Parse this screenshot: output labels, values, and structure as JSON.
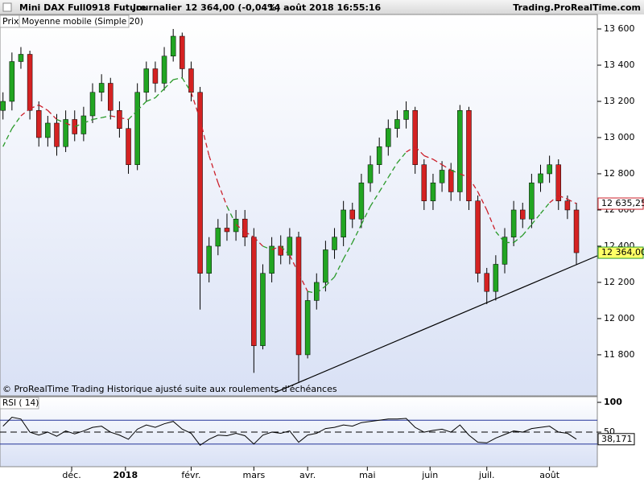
{
  "header": {
    "instrument": "Mini DAX Full0918 Future",
    "period": "Journalier",
    "quote": "12 364,00 (-0,04%)",
    "datetime": "14 août 2018 16:55:16",
    "site": "Trading.ProRealTime.com"
  },
  "chart_data": {
    "type": "candlestick",
    "price_label": "Prix",
    "footer": "© ProRealTime Trading  Historique ajusté suite aux roulements d'échéances",
    "up_color": "#22a522",
    "down_color": "#d42222",
    "xlim": [
      0,
      200
    ],
    "xticks": [
      {
        "value": 24,
        "label": "déc."
      },
      {
        "value": 42,
        "label": "2018"
      },
      {
        "value": 64,
        "label": "févr."
      },
      {
        "value": 85,
        "label": "mars"
      },
      {
        "value": 103,
        "label": "avr."
      },
      {
        "value": 123,
        "label": "mai"
      },
      {
        "value": 144,
        "label": "juin"
      },
      {
        "value": 163,
        "label": "juil."
      },
      {
        "value": 184,
        "label": "août"
      }
    ],
    "ylim": [
      11573,
      13680
    ],
    "yticks": [
      {
        "value": 13600,
        "label": "13 600"
      },
      {
        "value": 13400,
        "label": "13 400"
      },
      {
        "value": 13200,
        "label": "13 200"
      },
      {
        "value": 13000,
        "label": "13 000"
      },
      {
        "value": 12800,
        "label": "12 800"
      },
      {
        "value": 12600,
        "label": "12 600"
      },
      {
        "value": 12400,
        "label": "12 400"
      },
      {
        "value": 12200,
        "label": "12 200"
      },
      {
        "value": 12000,
        "label": "12 000"
      },
      {
        "value": 11800,
        "label": "11 800"
      }
    ],
    "x": [
      1,
      4,
      7,
      10,
      13,
      16,
      19,
      22,
      25,
      28,
      31,
      34,
      37,
      40,
      43,
      46,
      49,
      52,
      55,
      58,
      61,
      64,
      67,
      70,
      73,
      76,
      79,
      82,
      85,
      88,
      91,
      94,
      97,
      100,
      103,
      106,
      109,
      112,
      115,
      118,
      121,
      124,
      127,
      130,
      133,
      136,
      139,
      142,
      145,
      148,
      151,
      154,
      157,
      160,
      163,
      166,
      169,
      172,
      175,
      178,
      181,
      184,
      187,
      190,
      193
    ],
    "open": [
      13150,
      13200,
      13420,
      13460,
      13150,
      13000,
      13080,
      12950,
      13100,
      13020,
      13120,
      13250,
      13300,
      13150,
      13050,
      12850,
      13250,
      13380,
      13300,
      13450,
      13560,
      13380,
      13250,
      12250,
      12400,
      12500,
      12480,
      12550,
      12450,
      11850,
      12250,
      12400,
      12350,
      12450,
      11800,
      12100,
      12200,
      12380,
      12450,
      12600,
      12550,
      12750,
      12850,
      12950,
      13050,
      13100,
      13150,
      12850,
      12650,
      12750,
      12820,
      12700,
      13150,
      12650,
      12250,
      12150,
      12300,
      12450,
      12600,
      12550,
      12750,
      12800,
      12850,
      12650,
      12600
    ],
    "high": [
      13250,
      13470,
      13500,
      13480,
      13200,
      13120,
      13130,
      13150,
      13150,
      13170,
      13300,
      13350,
      13330,
      13200,
      13100,
      13300,
      13420,
      13420,
      13500,
      13600,
      13580,
      13420,
      13280,
      12450,
      12550,
      12580,
      12600,
      12600,
      12500,
      12300,
      12450,
      12460,
      12500,
      12480,
      12150,
      12250,
      12430,
      12500,
      12650,
      12640,
      12800,
      12900,
      13000,
      13100,
      13150,
      13200,
      13170,
      12880,
      12800,
      12870,
      12860,
      13180,
      13170,
      12680,
      12280,
      12350,
      12500,
      12650,
      12640,
      12800,
      12850,
      12900,
      12880,
      12680,
      12640
    ],
    "low": [
      13100,
      13150,
      13380,
      13100,
      12950,
      12950,
      12900,
      12920,
      12980,
      12980,
      13080,
      13200,
      13100,
      13000,
      12800,
      12820,
      13200,
      13250,
      13260,
      13420,
      13330,
      13200,
      12050,
      12200,
      12350,
      12430,
      12430,
      12400,
      11700,
      11830,
      12200,
      12300,
      12300,
      11650,
      11780,
      12050,
      12150,
      12330,
      12400,
      12500,
      12500,
      12700,
      12800,
      12900,
      13000,
      13050,
      12800,
      12600,
      12600,
      12700,
      12650,
      12650,
      12600,
      12200,
      12080,
      12100,
      12250,
      12400,
      12500,
      12500,
      12700,
      12750,
      12600,
      12550,
      12300
    ],
    "close": [
      13200,
      13420,
      13460,
      13150,
      13000,
      13080,
      12950,
      13100,
      13020,
      13120,
      13250,
      13300,
      13150,
      13050,
      12850,
      13250,
      13380,
      13300,
      13450,
      13560,
      13380,
      13250,
      12250,
      12400,
      12500,
      12480,
      12550,
      12450,
      11850,
      12250,
      12400,
      12350,
      12450,
      11800,
      12100,
      12200,
      12380,
      12450,
      12600,
      12550,
      12750,
      12850,
      12950,
      13050,
      13100,
      13150,
      12850,
      12650,
      12750,
      12820,
      12700,
      13150,
      12650,
      12250,
      12150,
      12300,
      12450,
      12600,
      12550,
      12750,
      12800,
      12850,
      12650,
      12600,
      12364
    ],
    "ma": {
      "name": "Moyenne mobile (Simple 20)",
      "up_color": "#2a9a2a",
      "down_color": "#cc1f2a",
      "values": [
        12950,
        13050,
        13120,
        13160,
        13180,
        13150,
        13100,
        13080,
        13060,
        13080,
        13100,
        13110,
        13120,
        13110,
        13100,
        13150,
        13200,
        13220,
        13270,
        13320,
        13330,
        13250,
        13100,
        12900,
        12750,
        12620,
        12520,
        12480,
        12450,
        12400,
        12380,
        12400,
        12350,
        12250,
        12150,
        12140,
        12180,
        12230,
        12330,
        12420,
        12520,
        12620,
        12700,
        12780,
        12860,
        12920,
        12950,
        12900,
        12880,
        12850,
        12820,
        12800,
        12780,
        12700,
        12600,
        12480,
        12420,
        12420,
        12460,
        12520,
        12580,
        12640,
        12680,
        12660,
        12635.25
      ],
      "last": {
        "value": 12635.25,
        "label": "12 635,25"
      }
    },
    "last_price": {
      "value": 12364,
      "label": "12 364,00"
    },
    "trendline": {
      "x": [
        92,
        200
      ],
      "y": [
        11591,
        12347
      ],
      "color": "#000000"
    },
    "rsi": {
      "name": "RSI ( 14)",
      "color": "#000000",
      "ylim": [
        -8,
        109.5
      ],
      "yticks": [
        100,
        50
      ],
      "levels": [
        70,
        30
      ],
      "values": [
        60,
        75,
        72,
        50,
        45,
        50,
        43,
        52,
        47,
        52,
        58,
        60,
        50,
        45,
        38,
        55,
        62,
        58,
        64,
        68,
        55,
        48,
        28,
        38,
        45,
        44,
        48,
        44,
        30,
        45,
        50,
        48,
        52,
        33,
        45,
        48,
        56,
        58,
        62,
        60,
        66,
        68,
        70,
        72,
        72,
        73,
        58,
        50,
        53,
        55,
        50,
        62,
        45,
        33,
        32,
        40,
        46,
        52,
        50,
        56,
        58,
        60,
        50,
        48,
        38.171
      ],
      "last": {
        "value": 38.171,
        "label": "38,171"
      }
    }
  }
}
